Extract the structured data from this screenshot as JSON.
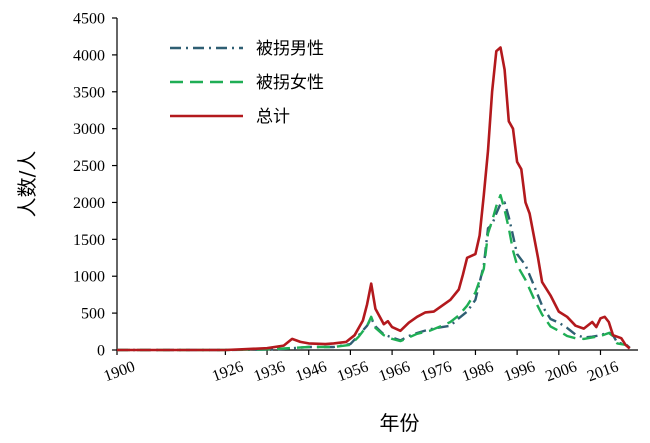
{
  "chart_data": {
    "type": "line",
    "title": "",
    "xlabel": "年份",
    "ylabel": "人数/人",
    "ylim": [
      0,
      4500
    ],
    "xlim": [
      1900,
      2025
    ],
    "grid": false,
    "legend_position": "top-left",
    "x_ticks": [
      {
        "value": 1900,
        "label": "1900"
      },
      {
        "value": 1926,
        "label": "1926"
      },
      {
        "value": 1936,
        "label": "1936"
      },
      {
        "value": 1946,
        "label": "1946"
      },
      {
        "value": 1956,
        "label": "1956"
      },
      {
        "value": 1966,
        "label": "1966"
      },
      {
        "value": 1976,
        "label": "1976"
      },
      {
        "value": 1986,
        "label": "1986"
      },
      {
        "value": 1996,
        "label": "1996"
      },
      {
        "value": 2006,
        "label": "2006"
      },
      {
        "value": 2016,
        "label": "2016"
      }
    ],
    "y_ticks": [
      {
        "value": 0,
        "label": "0"
      },
      {
        "value": 500,
        "label": "500"
      },
      {
        "value": 1000,
        "label": "1000"
      },
      {
        "value": 1500,
        "label": "1500"
      },
      {
        "value": 2000,
        "label": "2000"
      },
      {
        "value": 2500,
        "label": "2500"
      },
      {
        "value": 3000,
        "label": "3000"
      },
      {
        "value": 3500,
        "label": "3500"
      },
      {
        "value": 4000,
        "label": "4000"
      },
      {
        "value": 4500,
        "label": "4500"
      }
    ],
    "series": [
      {
        "name": "被拐男性",
        "color": "#2f5f73",
        "dash": "dashdot",
        "points": [
          [
            1900,
            0
          ],
          [
            1926,
            0
          ],
          [
            1936,
            5
          ],
          [
            1940,
            15
          ],
          [
            1946,
            40
          ],
          [
            1952,
            40
          ],
          [
            1956,
            80
          ],
          [
            1958,
            200
          ],
          [
            1960,
            330
          ],
          [
            1961,
            430
          ],
          [
            1962,
            320
          ],
          [
            1964,
            210
          ],
          [
            1966,
            170
          ],
          [
            1968,
            130
          ],
          [
            1970,
            190
          ],
          [
            1972,
            230
          ],
          [
            1975,
            280
          ],
          [
            1978,
            310
          ],
          [
            1980,
            330
          ],
          [
            1982,
            430
          ],
          [
            1984,
            520
          ],
          [
            1986,
            680
          ],
          [
            1988,
            1150
          ],
          [
            1989,
            1650
          ],
          [
            1990,
            1700
          ],
          [
            1991,
            1850
          ],
          [
            1992,
            1980
          ],
          [
            1993,
            2000
          ],
          [
            1994,
            1800
          ],
          [
            1995,
            1550
          ],
          [
            1996,
            1300
          ],
          [
            1998,
            1150
          ],
          [
            2000,
            880
          ],
          [
            2002,
            600
          ],
          [
            2004,
            420
          ],
          [
            2006,
            370
          ],
          [
            2008,
            300
          ],
          [
            2010,
            210
          ],
          [
            2012,
            170
          ],
          [
            2014,
            180
          ],
          [
            2016,
            200
          ],
          [
            2018,
            240
          ],
          [
            2019,
            200
          ],
          [
            2020,
            100
          ],
          [
            2022,
            80
          ],
          [
            2023,
            30
          ]
        ]
      },
      {
        "name": "被拐女性",
        "color": "#1fae55",
        "dash": "dashed",
        "points": [
          [
            1900,
            0
          ],
          [
            1926,
            0
          ],
          [
            1936,
            10
          ],
          [
            1940,
            20
          ],
          [
            1946,
            40
          ],
          [
            1952,
            40
          ],
          [
            1956,
            70
          ],
          [
            1958,
            180
          ],
          [
            1960,
            330
          ],
          [
            1961,
            450
          ],
          [
            1962,
            300
          ],
          [
            1964,
            200
          ],
          [
            1966,
            150
          ],
          [
            1968,
            120
          ],
          [
            1970,
            170
          ],
          [
            1972,
            220
          ],
          [
            1975,
            260
          ],
          [
            1978,
            330
          ],
          [
            1980,
            380
          ],
          [
            1982,
            470
          ],
          [
            1984,
            600
          ],
          [
            1986,
            780
          ],
          [
            1988,
            1100
          ],
          [
            1989,
            1580
          ],
          [
            1990,
            1750
          ],
          [
            1991,
            1950
          ],
          [
            1992,
            2100
          ],
          [
            1993,
            1900
          ],
          [
            1994,
            1650
          ],
          [
            1995,
            1350
          ],
          [
            1996,
            1150
          ],
          [
            1998,
            950
          ],
          [
            2000,
            700
          ],
          [
            2002,
            480
          ],
          [
            2004,
            320
          ],
          [
            2006,
            260
          ],
          [
            2008,
            190
          ],
          [
            2010,
            160
          ],
          [
            2012,
            150
          ],
          [
            2014,
            170
          ],
          [
            2016,
            190
          ],
          [
            2018,
            230
          ],
          [
            2019,
            190
          ],
          [
            2020,
            90
          ],
          [
            2022,
            70
          ],
          [
            2023,
            25
          ]
        ]
      },
      {
        "name": "总计",
        "color": "#b3191d",
        "dash": "solid",
        "points": [
          [
            1900,
            0
          ],
          [
            1926,
            0
          ],
          [
            1930,
            10
          ],
          [
            1936,
            25
          ],
          [
            1940,
            60
          ],
          [
            1942,
            150
          ],
          [
            1944,
            110
          ],
          [
            1946,
            90
          ],
          [
            1950,
            80
          ],
          [
            1952,
            90
          ],
          [
            1955,
            110
          ],
          [
            1957,
            200
          ],
          [
            1959,
            400
          ],
          [
            1960,
            620
          ],
          [
            1961,
            900
          ],
          [
            1962,
            560
          ],
          [
            1964,
            350
          ],
          [
            1965,
            390
          ],
          [
            1966,
            310
          ],
          [
            1968,
            260
          ],
          [
            1970,
            370
          ],
          [
            1972,
            450
          ],
          [
            1974,
            510
          ],
          [
            1976,
            520
          ],
          [
            1978,
            600
          ],
          [
            1980,
            680
          ],
          [
            1982,
            820
          ],
          [
            1983,
            1020
          ],
          [
            1984,
            1250
          ],
          [
            1986,
            1300
          ],
          [
            1987,
            1550
          ],
          [
            1988,
            2100
          ],
          [
            1989,
            2700
          ],
          [
            1990,
            3500
          ],
          [
            1991,
            4050
          ],
          [
            1992,
            4100
          ],
          [
            1993,
            3800
          ],
          [
            1994,
            3100
          ],
          [
            1995,
            3000
          ],
          [
            1996,
            2550
          ],
          [
            1997,
            2450
          ],
          [
            1998,
            2000
          ],
          [
            1999,
            1850
          ],
          [
            2000,
            1550
          ],
          [
            2001,
            1250
          ],
          [
            2002,
            920
          ],
          [
            2004,
            740
          ],
          [
            2006,
            520
          ],
          [
            2008,
            450
          ],
          [
            2010,
            330
          ],
          [
            2012,
            290
          ],
          [
            2014,
            380
          ],
          [
            2015,
            310
          ],
          [
            2016,
            430
          ],
          [
            2017,
            450
          ],
          [
            2018,
            380
          ],
          [
            2019,
            200
          ],
          [
            2021,
            160
          ],
          [
            2022,
            70
          ],
          [
            2023,
            20
          ]
        ]
      }
    ]
  }
}
